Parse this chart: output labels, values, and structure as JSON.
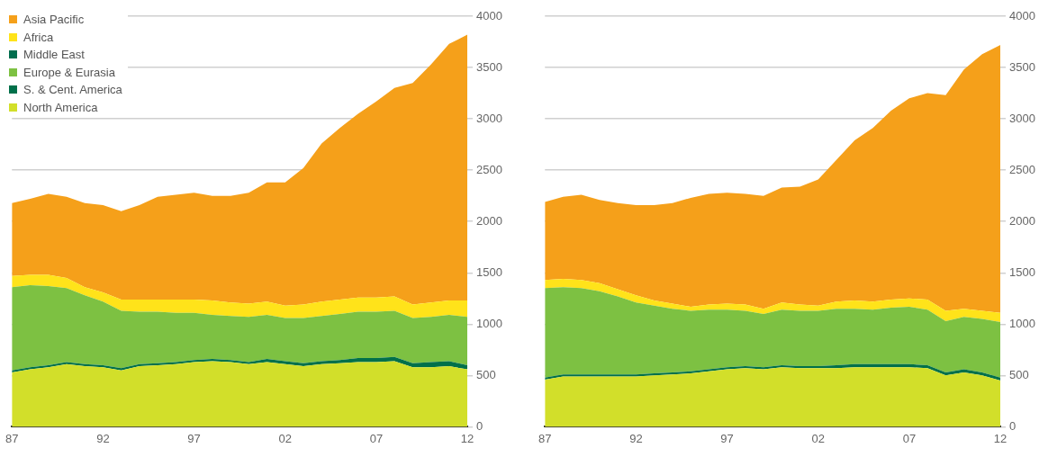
{
  "chart_data": [
    {
      "type": "area",
      "stacked": true,
      "legend": "top left",
      "grid": "y",
      "categories": [
        "87",
        null,
        null,
        null,
        null,
        "92",
        null,
        null,
        null,
        null,
        "97",
        null,
        null,
        null,
        null,
        "02",
        null,
        null,
        null,
        null,
        "07",
        null,
        null,
        null,
        null,
        "12"
      ],
      "ylim": [
        0,
        4000
      ],
      "yticks": [
        0,
        500,
        1000,
        1500,
        2000,
        2500,
        3000,
        3500,
        4000
      ],
      "series": [
        {
          "name": "North America",
          "color": "#d2df2a",
          "values": [
            530,
            560,
            580,
            610,
            590,
            580,
            550,
            590,
            600,
            610,
            630,
            640,
            630,
            610,
            630,
            610,
            590,
            610,
            620,
            630,
            630,
            640,
            580,
            580,
            590,
            560
          ]
        },
        {
          "name": "S. & Cent. America",
          "color": "#00704a",
          "values": [
            20,
            20,
            20,
            20,
            20,
            20,
            20,
            20,
            20,
            20,
            20,
            20,
            20,
            20,
            30,
            30,
            30,
            30,
            30,
            40,
            40,
            40,
            40,
            50,
            50,
            40
          ]
        },
        {
          "name": "Europe & Eurasia",
          "color": "#7dc142",
          "values": [
            810,
            800,
            770,
            720,
            670,
            620,
            560,
            510,
            500,
            480,
            460,
            430,
            430,
            440,
            430,
            420,
            440,
            440,
            450,
            450,
            450,
            450,
            440,
            440,
            450,
            470
          ]
        },
        {
          "name": "Middle East",
          "color": "#006e4e",
          "values": [
            null,
            null,
            null,
            null,
            null,
            null,
            null,
            null,
            null,
            null,
            null,
            null,
            null,
            null,
            null,
            null,
            null,
            null,
            null,
            null,
            null,
            null,
            null,
            null,
            null,
            null
          ]
        },
        {
          "name": "Africa",
          "color": "#ffe31a",
          "values": [
            110,
            100,
            110,
            100,
            80,
            90,
            110,
            120,
            120,
            130,
            130,
            140,
            130,
            130,
            130,
            120,
            130,
            140,
            140,
            140,
            140,
            140,
            130,
            140,
            140,
            160
          ]
        },
        {
          "name": "Asia Pacific",
          "color": "#f5a01a",
          "values": [
            710,
            740,
            790,
            790,
            820,
            850,
            860,
            920,
            1000,
            1020,
            1040,
            1020,
            1040,
            1080,
            1160,
            1200,
            1330,
            1540,
            1670,
            1790,
            1910,
            2030,
            2160,
            2320,
            2500,
            2590
          ]
        }
      ]
    },
    {
      "type": "area",
      "stacked": true,
      "grid": "y",
      "categories": [
        "87",
        null,
        null,
        null,
        null,
        "92",
        null,
        null,
        null,
        null,
        "97",
        null,
        null,
        null,
        null,
        "02",
        null,
        null,
        null,
        null,
        "07",
        null,
        null,
        null,
        null,
        "12"
      ],
      "ylim": [
        0,
        4000
      ],
      "yticks": [
        0,
        500,
        1000,
        1500,
        2000,
        2500,
        3000,
        3500,
        4000
      ],
      "series": [
        {
          "color": "#d2df2a",
          "values": [
            460,
            490,
            490,
            490,
            490,
            490,
            500,
            510,
            520,
            540,
            560,
            570,
            560,
            580,
            570,
            570,
            570,
            580,
            580,
            580,
            580,
            570,
            500,
            530,
            500,
            450
          ]
        },
        {
          "color": "#00704a",
          "values": [
            20,
            20,
            20,
            20,
            20,
            20,
            20,
            20,
            20,
            20,
            20,
            20,
            20,
            20,
            20,
            20,
            30,
            30,
            30,
            30,
            30,
            30,
            30,
            30,
            30,
            30
          ]
        },
        {
          "color": "#7dc142",
          "values": [
            870,
            850,
            840,
            810,
            760,
            700,
            660,
            620,
            590,
            580,
            560,
            540,
            520,
            540,
            540,
            540,
            550,
            540,
            530,
            550,
            560,
            540,
            500,
            510,
            520,
            540
          ]
        },
        {
          "color": "#ffe31a",
          "values": [
            80,
            80,
            80,
            80,
            70,
            70,
            50,
            50,
            40,
            50,
            60,
            60,
            50,
            70,
            60,
            50,
            70,
            80,
            80,
            80,
            80,
            100,
            100,
            80,
            80,
            90
          ]
        },
        {
          "color": "#f5a01a",
          "values": [
            760,
            800,
            830,
            810,
            840,
            880,
            930,
            980,
            1060,
            1080,
            1080,
            1080,
            1100,
            1120,
            1150,
            1230,
            1380,
            1560,
            1690,
            1840,
            1950,
            2010,
            2100,
            2330,
            2500,
            2610
          ]
        }
      ]
    }
  ]
}
